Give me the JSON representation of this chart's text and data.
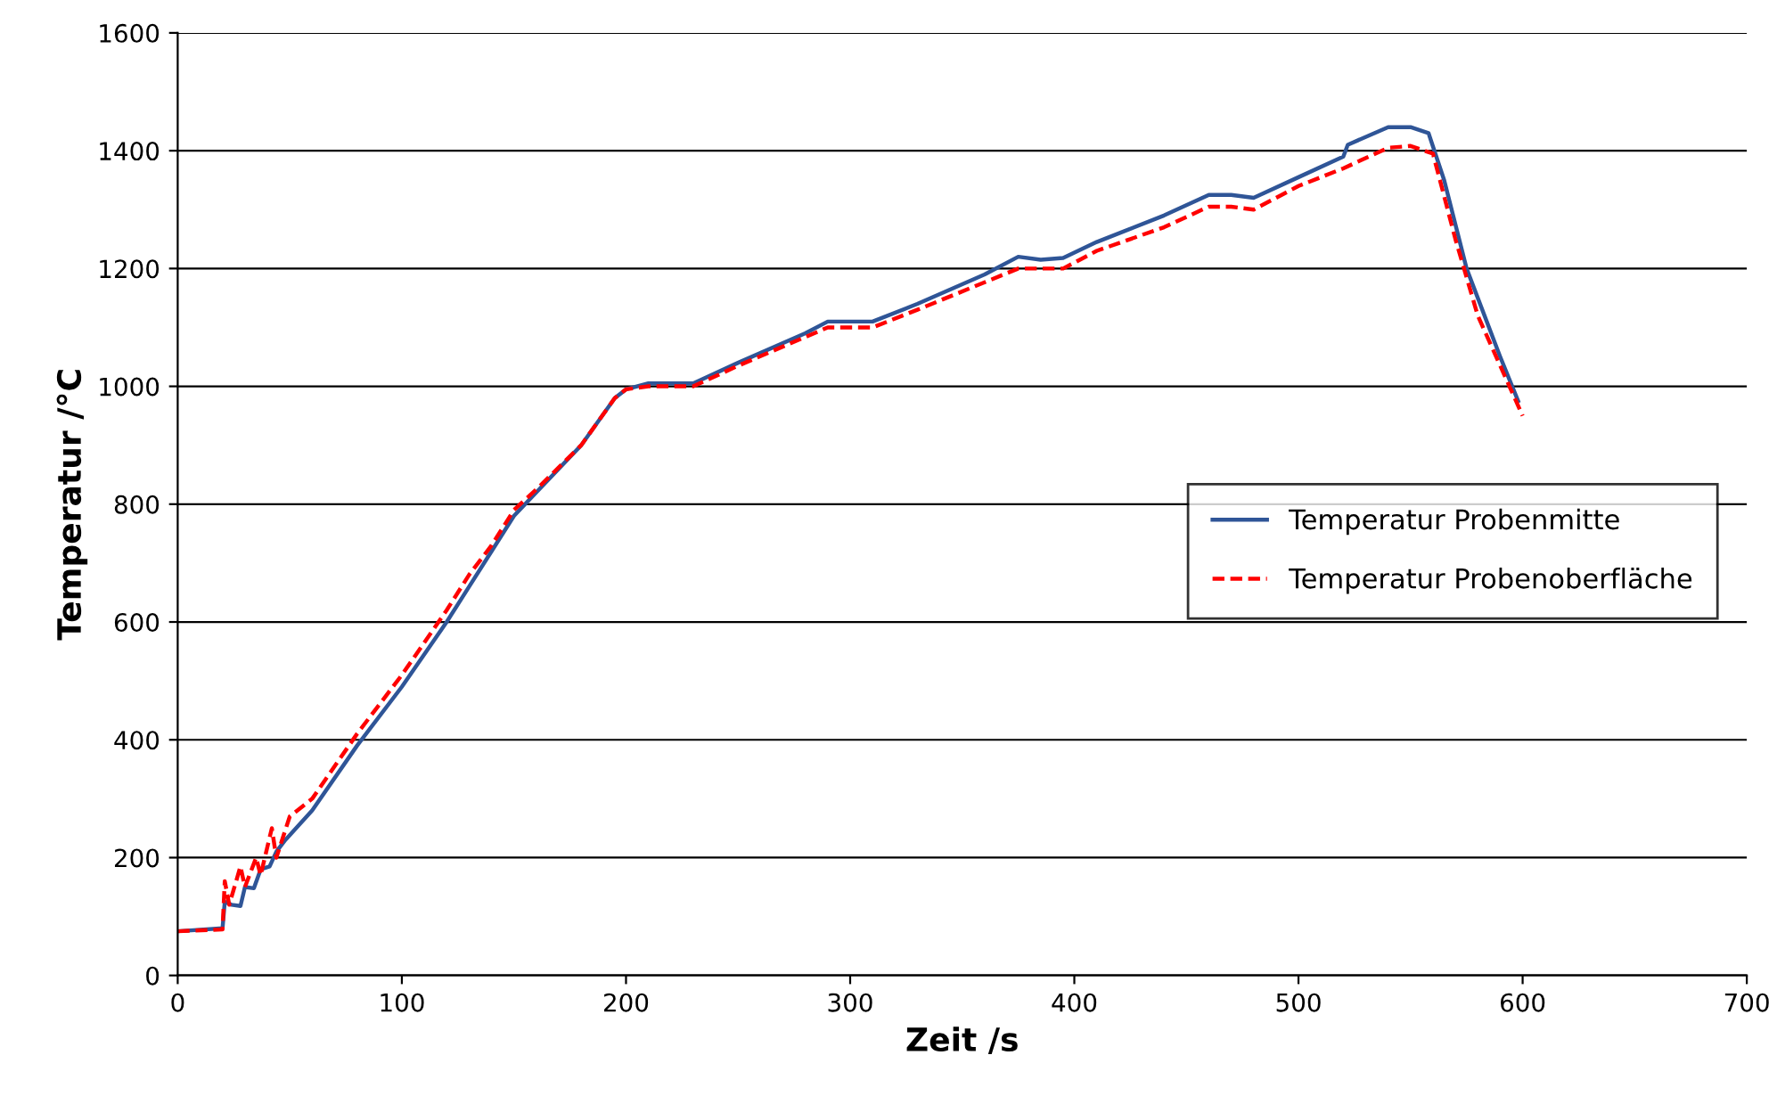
{
  "chart_data": {
    "type": "line",
    "xlabel": "Zeit /s",
    "ylabel": "Temperatur /°C",
    "xlim": [
      0,
      700
    ],
    "xticks": [
      0,
      100,
      200,
      300,
      400,
      500,
      600,
      700
    ],
    "ylim": [
      0,
      1600
    ],
    "yticks": [
      0,
      200,
      400,
      600,
      800,
      1000,
      1200,
      1400,
      1600
    ],
    "grid": "y",
    "legend": "right",
    "marker": "none",
    "series": [
      {
        "name": "Temperatur Probenmitte",
        "color": "#2f5597",
        "line_style": "solid",
        "x": [
          0,
          20,
          21,
          24,
          28,
          30,
          34,
          37,
          41,
          44,
          48,
          60,
          80,
          100,
          120,
          130,
          140,
          150,
          155,
          160,
          180,
          195,
          200,
          210,
          230,
          250,
          280,
          290,
          310,
          330,
          360,
          375,
          385,
          395,
          410,
          440,
          460,
          470,
          480,
          500,
          520,
          522,
          540,
          550,
          558,
          565,
          575,
          590,
          598
        ],
        "values": [
          75,
          80,
          125,
          120,
          118,
          150,
          148,
          180,
          185,
          210,
          230,
          280,
          390,
          490,
          600,
          660,
          720,
          780,
          800,
          820,
          900,
          980,
          995,
          1005,
          1005,
          1040,
          1090,
          1110,
          1110,
          1140,
          1190,
          1220,
          1215,
          1218,
          1245,
          1290,
          1325,
          1325,
          1320,
          1355,
          1390,
          1410,
          1440,
          1440,
          1430,
          1350,
          1200,
          1050,
          975
        ]
      },
      {
        "name": "Temperatur Probenoberfläche",
        "color": "#ff0000",
        "line_style": "dashed",
        "x": [
          0,
          20,
          21,
          23,
          28,
          30,
          35,
          37,
          42,
          44,
          50,
          60,
          80,
          100,
          120,
          130,
          140,
          150,
          160,
          180,
          195,
          200,
          210,
          230,
          250,
          290,
          310,
          330,
          375,
          395,
          410,
          440,
          460,
          470,
          480,
          500,
          520,
          540,
          550,
          560,
          570,
          580,
          600
        ],
        "values": [
          75,
          78,
          160,
          120,
          185,
          150,
          200,
          170,
          250,
          200,
          270,
          300,
          410,
          510,
          620,
          680,
          730,
          790,
          825,
          900,
          980,
          995,
          1000,
          1000,
          1035,
          1100,
          1100,
          1130,
          1200,
          1200,
          1230,
          1270,
          1305,
          1305,
          1300,
          1340,
          1370,
          1405,
          1408,
          1395,
          1250,
          1120,
          950
        ]
      }
    ]
  }
}
